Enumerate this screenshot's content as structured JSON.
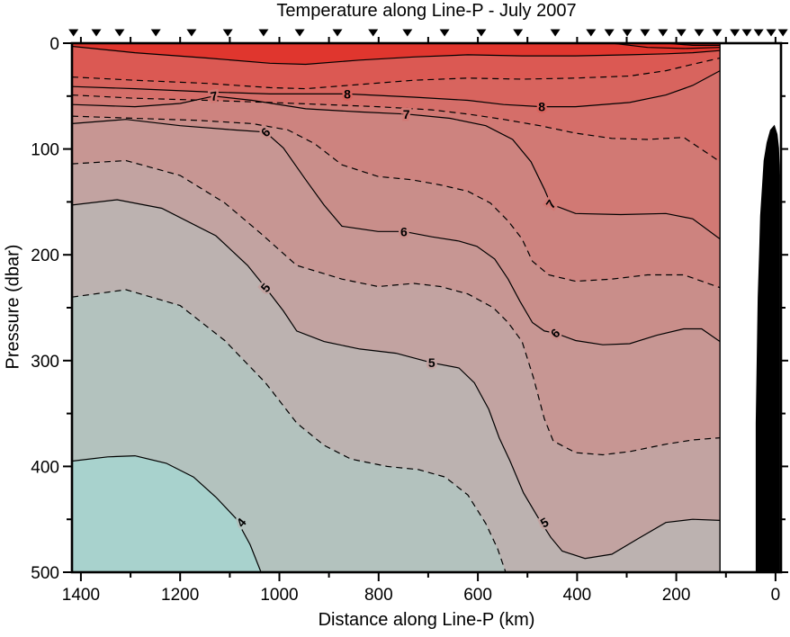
{
  "figure": {
    "title": "Temperature along Line-P - July 2007",
    "xlabel": "Distance along Line-P (km)",
    "ylabel": "Pressure (dbar)"
  },
  "chart_data": {
    "type": "heatmap",
    "subtype": "filled_contour_section",
    "title": "Temperature along Line-P - July 2007",
    "xlabel": "Distance along Line-P (km)",
    "ylabel": "Pressure (dbar)",
    "x_axis": {
      "label": "Distance along Line-P (km)",
      "range_km": [
        1418,
        -11
      ],
      "reversed": true,
      "ticks_major": [
        1400,
        1200,
        1000,
        800,
        600,
        400,
        200,
        0
      ],
      "ticks_minor": [
        1300,
        1100,
        900,
        700,
        500,
        300,
        100
      ],
      "ticks_top": [
        1400,
        1300,
        1200,
        1100,
        1000,
        900,
        800,
        700,
        600,
        500,
        400,
        300,
        200,
        100,
        0
      ]
    },
    "y_axis": {
      "label": "Pressure (dbar)",
      "range_dbar": [
        0,
        500
      ],
      "inverted": true,
      "ticks_major": [
        0,
        100,
        200,
        300,
        400,
        500
      ],
      "ticks_minor": [
        50,
        150,
        250,
        350,
        450
      ]
    },
    "contour_interval": 0.5,
    "solid_levels": "integers",
    "dashed_levels": "half-integers",
    "levels_labeled": [
      4,
      5,
      6,
      7,
      8
    ],
    "data_extent_km": [
      1418,
      112
    ],
    "station_markers_km": [
      1415,
      1369,
      1322,
      1249,
      1177,
      1104,
      1032,
      959,
      883,
      811,
      742,
      667,
      593,
      519,
      444,
      372,
      335,
      299,
      263,
      227,
      190,
      154,
      118,
      82,
      58,
      34,
      9,
      -15
    ],
    "background_band_color": "#a8d2cd",
    "fill_above": [
      {
        "level": 4,
        "color": "#b3c2be"
      },
      {
        "level": 4.5,
        "color": "#bcb2b0"
      },
      {
        "level": 5,
        "color": "#c2a3a1"
      },
      {
        "level": 5.5,
        "color": "#c79693"
      },
      {
        "level": 6,
        "color": "#c98e8a"
      },
      {
        "level": 6.5,
        "color": "#cd837f"
      },
      {
        "level": 7,
        "color": "#d17974"
      },
      {
        "level": 7.5,
        "color": "#d56e69"
      },
      {
        "level": 8,
        "color": "#d8645e"
      },
      {
        "level": 8.5,
        "color": "#db5953"
      },
      {
        "level": 9,
        "color": "#e0362e"
      },
      {
        "level": 10,
        "color": "#e52e26"
      },
      {
        "level": 11,
        "color": "#e9261e"
      }
    ],
    "contours": [
      {
        "level": 4,
        "style": "solid",
        "points": [
          [
            1418,
            395
          ],
          [
            1346,
            391
          ],
          [
            1291,
            390
          ],
          [
            1228,
            397
          ],
          [
            1173,
            410
          ],
          [
            1128,
            429
          ],
          [
            1088,
            449
          ],
          [
            1059,
            474
          ],
          [
            1037,
            500
          ]
        ]
      },
      {
        "level": 4.5,
        "style": "dashed",
        "points": [
          [
            1418,
            240
          ],
          [
            1309,
            233
          ],
          [
            1200,
            248
          ],
          [
            1110,
            281
          ],
          [
            1028,
            321
          ],
          [
            965,
            359
          ],
          [
            910,
            380
          ],
          [
            856,
            393
          ],
          [
            783,
            400
          ],
          [
            720,
            403
          ],
          [
            666,
            410
          ],
          [
            620,
            427
          ],
          [
            584,
            454
          ],
          [
            560,
            478
          ],
          [
            544,
            500
          ]
        ]
      },
      {
        "level": 5,
        "style": "solid",
        "points": [
          [
            1418,
            153
          ],
          [
            1327,
            148
          ],
          [
            1237,
            156
          ],
          [
            1128,
            182
          ],
          [
            1064,
            210
          ],
          [
            1028,
            231
          ],
          [
            992,
            253
          ],
          [
            965,
            272
          ],
          [
            910,
            282
          ],
          [
            838,
            289
          ],
          [
            765,
            293
          ],
          [
            693,
            302
          ],
          [
            638,
            307
          ],
          [
            607,
            321
          ],
          [
            578,
            346
          ],
          [
            557,
            373
          ],
          [
            535,
            395
          ],
          [
            508,
            425
          ],
          [
            479,
            448
          ],
          [
            453,
            467
          ],
          [
            430,
            480
          ],
          [
            384,
            487
          ],
          [
            330,
            483
          ],
          [
            276,
            468
          ],
          [
            221,
            453
          ],
          [
            167,
            450
          ],
          [
            112,
            451
          ]
        ]
      },
      {
        "level": 5.5,
        "style": "dashed",
        "points": [
          [
            1418,
            114
          ],
          [
            1309,
            111
          ],
          [
            1200,
            125
          ],
          [
            1110,
            151
          ],
          [
            1037,
            180
          ],
          [
            965,
            210
          ],
          [
            874,
            223
          ],
          [
            801,
            230
          ],
          [
            729,
            227
          ],
          [
            675,
            230
          ],
          [
            620,
            237
          ],
          [
            569,
            250
          ],
          [
            539,
            264
          ],
          [
            511,
            282
          ],
          [
            488,
            316
          ],
          [
            466,
            355
          ],
          [
            448,
            376
          ],
          [
            403,
            387
          ],
          [
            348,
            389
          ],
          [
            294,
            386
          ],
          [
            221,
            379
          ],
          [
            167,
            375
          ],
          [
            112,
            373
          ]
        ]
      },
      {
        "level": 6,
        "style": "solid",
        "points": [
          [
            1418,
            76
          ],
          [
            1309,
            72
          ],
          [
            1200,
            78
          ],
          [
            1092,
            82
          ],
          [
            1028,
            84
          ],
          [
            992,
            99
          ],
          [
            947,
            129
          ],
          [
            910,
            153
          ],
          [
            874,
            173
          ],
          [
            801,
            178
          ],
          [
            749,
            178
          ],
          [
            693,
            183
          ],
          [
            638,
            187
          ],
          [
            602,
            192
          ],
          [
            566,
            204
          ],
          [
            539,
            223
          ],
          [
            515,
            244
          ],
          [
            490,
            264
          ],
          [
            466,
            272
          ],
          [
            444,
            274
          ],
          [
            403,
            281
          ],
          [
            348,
            285
          ],
          [
            294,
            284
          ],
          [
            239,
            276
          ],
          [
            185,
            270
          ],
          [
            149,
            270
          ],
          [
            112,
            282
          ]
        ]
      },
      {
        "level": 6.5,
        "style": "dashed",
        "points": [
          [
            1418,
            69
          ],
          [
            1291,
            71
          ],
          [
            1164,
            73
          ],
          [
            1055,
            76
          ],
          [
            983,
            82
          ],
          [
            929,
            95
          ],
          [
            874,
            115
          ],
          [
            801,
            126
          ],
          [
            734,
            129
          ],
          [
            675,
            134
          ],
          [
            620,
            140
          ],
          [
            575,
            151
          ],
          [
            539,
            168
          ],
          [
            511,
            185
          ],
          [
            490,
            206
          ],
          [
            457,
            219
          ],
          [
            403,
            225
          ],
          [
            330,
            223
          ],
          [
            258,
            219
          ],
          [
            185,
            219
          ],
          [
            112,
            231
          ]
        ]
      },
      {
        "level": 7,
        "style": "solid",
        "points": [
          [
            1418,
            58
          ],
          [
            1291,
            60
          ],
          [
            1200,
            57
          ],
          [
            1132,
            50
          ],
          [
            1055,
            54
          ],
          [
            947,
            62
          ],
          [
            838,
            65
          ],
          [
            744,
            67
          ],
          [
            656,
            71
          ],
          [
            584,
            78
          ],
          [
            530,
            91
          ],
          [
            493,
            112
          ],
          [
            466,
            138
          ],
          [
            453,
            152
          ],
          [
            403,
            161
          ],
          [
            312,
            162
          ],
          [
            221,
            161
          ],
          [
            167,
            166
          ],
          [
            112,
            185
          ]
        ]
      },
      {
        "level": 7.5,
        "style": "dashed",
        "points": [
          [
            1418,
            49
          ],
          [
            1291,
            52
          ],
          [
            1146,
            54
          ],
          [
            1019,
            56
          ],
          [
            910,
            58
          ],
          [
            801,
            60
          ],
          [
            693,
            63
          ],
          [
            620,
            67
          ],
          [
            548,
            72
          ],
          [
            475,
            78
          ],
          [
            403,
            85
          ],
          [
            330,
            90
          ],
          [
            258,
            91
          ],
          [
            185,
            89
          ],
          [
            112,
            112
          ]
        ]
      },
      {
        "level": 8,
        "style": "solid",
        "points": [
          [
            1418,
            41
          ],
          [
            1291,
            43
          ],
          [
            1146,
            46
          ],
          [
            1019,
            48
          ],
          [
            863,
            48
          ],
          [
            729,
            51
          ],
          [
            620,
            54
          ],
          [
            548,
            58
          ],
          [
            471,
            60
          ],
          [
            403,
            60
          ],
          [
            294,
            56
          ],
          [
            221,
            49
          ],
          [
            167,
            40
          ],
          [
            112,
            26
          ]
        ]
      },
      {
        "level": 8.5,
        "style": "dashed",
        "points": [
          [
            1418,
            32
          ],
          [
            1291,
            35
          ],
          [
            1146,
            38
          ],
          [
            1019,
            42
          ],
          [
            947,
            43
          ],
          [
            838,
            39
          ],
          [
            729,
            35
          ],
          [
            620,
            33
          ],
          [
            511,
            34
          ],
          [
            403,
            33
          ],
          [
            294,
            31
          ],
          [
            221,
            26
          ],
          [
            167,
            20
          ],
          [
            112,
            14
          ]
        ]
      },
      {
        "level": 9,
        "style": "solid",
        "points": [
          [
            1418,
            3
          ],
          [
            1291,
            9
          ],
          [
            1146,
            14
          ],
          [
            1019,
            19
          ],
          [
            947,
            20
          ],
          [
            838,
            16
          ],
          [
            729,
            13
          ],
          [
            620,
            11
          ],
          [
            511,
            12
          ],
          [
            403,
            12
          ],
          [
            294,
            11
          ],
          [
            221,
            10
          ],
          [
            167,
            9
          ],
          [
            112,
            7
          ]
        ]
      },
      {
        "level": 10,
        "style": "solid",
        "points": [
          [
            330,
            0
          ],
          [
            258,
            4
          ],
          [
            185,
            5
          ],
          [
            112,
            4
          ]
        ]
      },
      {
        "level": 11,
        "style": "solid",
        "points": [
          [
            221,
            0
          ],
          [
            167,
            2
          ],
          [
            112,
            2
          ]
        ]
      }
    ],
    "contour_labels": [
      {
        "text": "7",
        "km": 1132,
        "dbar": 50,
        "rot": -10,
        "halo": "#d17974"
      },
      {
        "text": "8",
        "km": 863,
        "dbar": 48,
        "rot": 0,
        "halo": "#d8645e"
      },
      {
        "text": "7",
        "km": 744,
        "dbar": 67,
        "rot": 0,
        "halo": "#d17974"
      },
      {
        "text": "8",
        "km": 471,
        "dbar": 60,
        "rot": 0,
        "halo": "#d8645e"
      },
      {
        "text": "6",
        "km": 1028,
        "dbar": 84,
        "rot": -45,
        "halo": "#c98e8a"
      },
      {
        "text": "7",
        "km": 453,
        "dbar": 152,
        "rot": -55,
        "halo": "#d17974"
      },
      {
        "text": "6",
        "km": 749,
        "dbar": 178,
        "rot": 0,
        "halo": "#c98e8a"
      },
      {
        "text": "6",
        "km": 444,
        "dbar": 274,
        "rot": -45,
        "halo": "#c98e8a"
      },
      {
        "text": "5",
        "km": 1028,
        "dbar": 231,
        "rot": -50,
        "halo": "#c2a3a1"
      },
      {
        "text": "5",
        "km": 693,
        "dbar": 302,
        "rot": 0,
        "halo": "#c2a3a1"
      },
      {
        "text": "5",
        "km": 466,
        "dbar": 453,
        "rot": -30,
        "halo": "#c2a3a1"
      },
      {
        "text": "4",
        "km": 1077,
        "dbar": 453,
        "rot": -50,
        "halo": "#b3c2be"
      }
    ],
    "bathymetry_km_dbar": [
      [
        40,
        500
      ],
      [
        40,
        359
      ],
      [
        38,
        299
      ],
      [
        36,
        240
      ],
      [
        33,
        197
      ],
      [
        31,
        163
      ],
      [
        27,
        134
      ],
      [
        24,
        111
      ],
      [
        18,
        94
      ],
      [
        11,
        82
      ],
      [
        2,
        77
      ],
      [
        -4,
        86
      ],
      [
        -7,
        99
      ],
      [
        -9,
        125
      ],
      [
        -9,
        500
      ]
    ],
    "colors": {
      "frame": "#000000",
      "contour_line": "#000000",
      "bathymetry": "#000000",
      "background": "#ffffff",
      "station_marker": "#000000"
    },
    "legend": "none",
    "grid": "off"
  }
}
